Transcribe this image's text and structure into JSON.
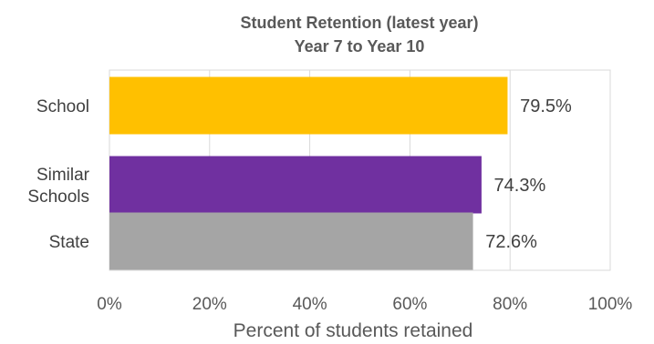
{
  "chart_data": {
    "type": "bar",
    "orientation": "horizontal",
    "title_lines": [
      "Student Retention (latest year)",
      "Year 7 to Year 10"
    ],
    "categories": [
      {
        "lines": [
          "School"
        ]
      },
      {
        "lines": [
          "Similar",
          "Schools"
        ]
      },
      {
        "lines": [
          "State"
        ]
      }
    ],
    "values": [
      79.5,
      74.3,
      72.6
    ],
    "data_labels": [
      "79.5%",
      "74.3%",
      "72.6%"
    ],
    "colors": [
      "#FFC000",
      "#7030A0",
      "#A5A5A5"
    ],
    "xlim": [
      0,
      100
    ],
    "xticks": [
      0,
      20,
      40,
      60,
      80,
      100
    ],
    "xtick_labels": [
      "0%",
      "20%",
      "40%",
      "60%",
      "80%",
      "100%"
    ],
    "xlabel": "Percent of students retained",
    "grid": true,
    "legend": "none"
  }
}
